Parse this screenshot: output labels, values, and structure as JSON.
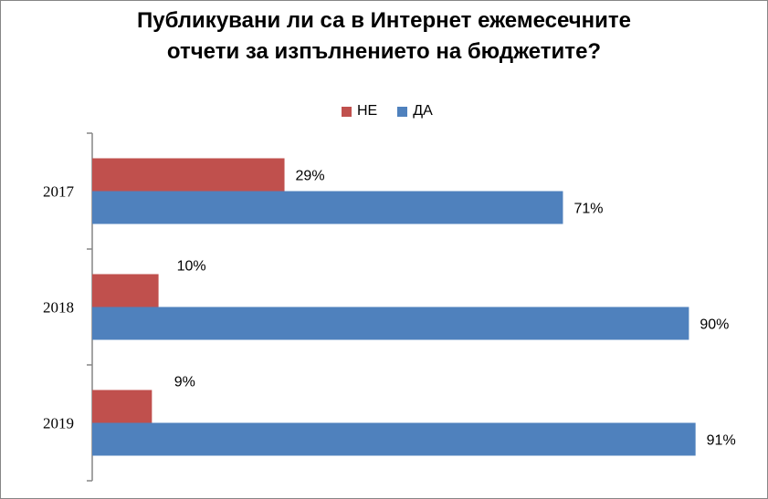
{
  "chart_data": {
    "type": "bar",
    "orientation": "horizontal",
    "title_line1": "Публикувани ли са в Интернет ежемесечните",
    "title_line2": "отчети за изпълнението на бюджетите?",
    "categories": [
      "2017",
      "2018",
      "2019"
    ],
    "series": [
      {
        "name": "НЕ",
        "color": "#c0504d",
        "values": [
          29,
          10,
          9
        ],
        "labels": [
          "29%",
          "10%",
          "9%"
        ]
      },
      {
        "name": "ДА",
        "color": "#4f81bd",
        "values": [
          71,
          90,
          91
        ],
        "labels": [
          "71%",
          "90%",
          "91%"
        ]
      }
    ],
    "xlim": [
      0,
      100
    ],
    "grid": false,
    "legend_position": "top"
  }
}
